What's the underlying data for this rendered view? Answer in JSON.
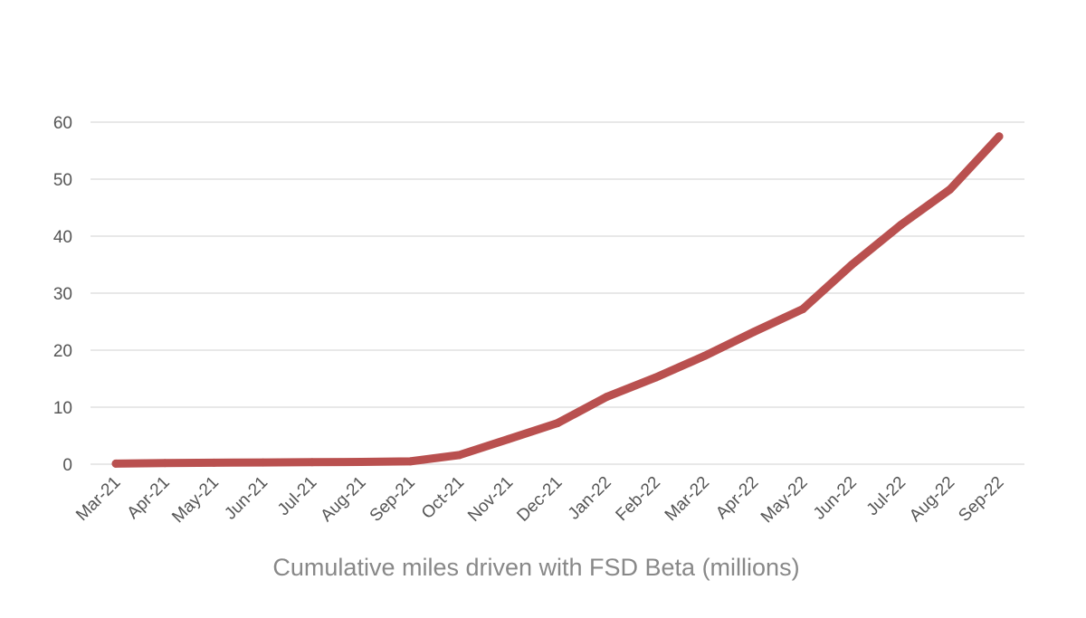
{
  "chart_data": {
    "type": "line",
    "title": "",
    "xlabel": "Cumulative miles driven with FSD Beta (millions)",
    "ylabel": "",
    "ylim": [
      0,
      60
    ],
    "yticks": [
      0,
      10,
      20,
      30,
      40,
      50,
      60
    ],
    "grid": true,
    "legend": "none",
    "categories": [
      "Mar-21",
      "Apr-21",
      "May-21",
      "Jun-21",
      "Jul-21",
      "Aug-21",
      "Sep-21",
      "Oct-21",
      "Nov-21",
      "Dec-21",
      "Jan-22",
      "Feb-22",
      "Mar-22",
      "Apr-22",
      "May-22",
      "Jun-22",
      "Jul-22",
      "Aug-22",
      "Sep-22"
    ],
    "series": [
      {
        "values": [
          0.1,
          0.2,
          0.25,
          0.3,
          0.35,
          0.4,
          0.5,
          1.6,
          4.4,
          7.2,
          11.8,
          15.2,
          19.0,
          23.2,
          27.2,
          35.0,
          42.0,
          48.2,
          57.5
        ],
        "color": "#b9504f"
      }
    ]
  }
}
